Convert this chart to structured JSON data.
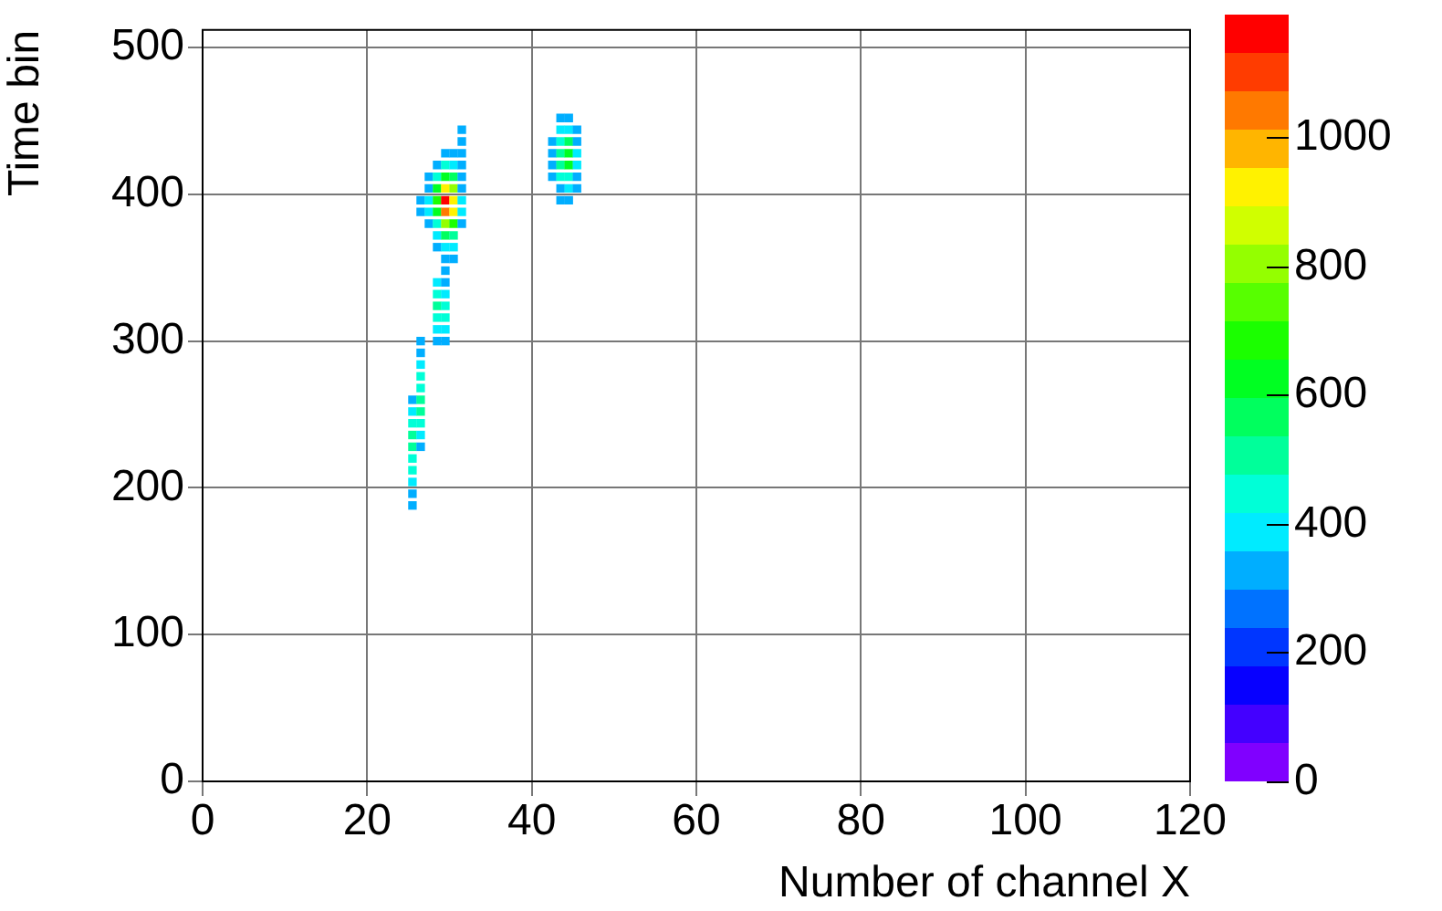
{
  "chart_data": {
    "type": "scatter",
    "xlabel": "Number of channel X",
    "ylabel": "Time bin",
    "marker": "square",
    "grid": true,
    "xlim": [
      0,
      120
    ],
    "xticks": [
      0,
      20,
      40,
      60,
      80,
      100,
      120
    ],
    "ylim": [
      0,
      512
    ],
    "yticks": [
      0,
      100,
      200,
      300,
      400,
      500
    ],
    "clim": [
      0,
      1190
    ],
    "cticks": [
      0,
      200,
      400,
      600,
      800,
      1000
    ],
    "x": [
      25.5,
      25.5,
      25.5,
      25.5,
      25.5,
      25.5,
      25.5,
      25.5,
      25.5,
      25.5,
      26.5,
      26.5,
      26.5,
      26.5,
      26.5,
      26.5,
      26.5,
      26.5,
      26.5,
      26.5,
      28.5,
      28.5,
      28.5,
      28.5,
      28.5,
      28.5,
      29.5,
      29.5,
      29.5,
      29.5,
      29.5,
      29.5,
      29.5,
      26.5,
      26.5,
      27.5,
      27.5,
      27.5,
      27.5,
      27.5,
      28.5,
      28.5,
      28.5,
      28.5,
      28.5,
      28.5,
      28.5,
      28.5,
      29.5,
      29.5,
      29.5,
      29.5,
      29.5,
      29.5,
      29.5,
      29.5,
      29.5,
      29.5,
      30.5,
      30.5,
      30.5,
      30.5,
      30.5,
      30.5,
      30.5,
      30.5,
      30.5,
      30.5,
      31.5,
      31.5,
      31.5,
      31.5,
      31.5,
      31.5,
      31.5,
      31.5,
      31.5,
      42.5,
      42.5,
      42.5,
      42.5,
      43.5,
      43.5,
      43.5,
      43.5,
      43.5,
      43.5,
      43.5,
      43.5,
      44.5,
      44.5,
      44.5,
      44.5,
      44.5,
      44.5,
      44.5,
      44.5,
      45.5,
      45.5,
      45.5,
      45.5,
      45.5,
      45.5
    ],
    "values": [
      188,
      196,
      204,
      212,
      220,
      228,
      236,
      244,
      252,
      260,
      228,
      236,
      244,
      252,
      260,
      268,
      276,
      284,
      292,
      300,
      300,
      308,
      316,
      324,
      332,
      340,
      300,
      308,
      316,
      324,
      332,
      340,
      348,
      388,
      396,
      380,
      388,
      396,
      404,
      412,
      364,
      372,
      380,
      388,
      396,
      404,
      412,
      420,
      356,
      364,
      372,
      380,
      388,
      396,
      404,
      412,
      420,
      428,
      356,
      364,
      372,
      380,
      388,
      396,
      404,
      412,
      420,
      428,
      380,
      388,
      396,
      404,
      412,
      420,
      428,
      436,
      444,
      412,
      420,
      428,
      436,
      396,
      404,
      412,
      420,
      428,
      436,
      444,
      452,
      396,
      404,
      412,
      420,
      428,
      436,
      444,
      452,
      404,
      412,
      420,
      428,
      436,
      444
    ],
    "cvalues": [
      300,
      340,
      380,
      420,
      460,
      480,
      500,
      460,
      400,
      340,
      320,
      360,
      420,
      480,
      500,
      460,
      420,
      380,
      340,
      300,
      320,
      400,
      460,
      500,
      440,
      360,
      300,
      360,
      420,
      460,
      400,
      340,
      300,
      300,
      320,
      320,
      360,
      380,
      340,
      300,
      320,
      360,
      460,
      620,
      700,
      600,
      460,
      340,
      340,
      400,
      560,
      800,
      1050,
      1150,
      950,
      640,
      420,
      320,
      320,
      380,
      500,
      700,
      900,
      950,
      780,
      540,
      380,
      300,
      320,
      360,
      380,
      340,
      300,
      300,
      300,
      300,
      300,
      300,
      320,
      320,
      300,
      300,
      340,
      420,
      500,
      520,
      460,
      360,
      300,
      300,
      360,
      460,
      600,
      640,
      540,
      400,
      320,
      300,
      340,
      380,
      380,
      340,
      300
    ]
  }
}
